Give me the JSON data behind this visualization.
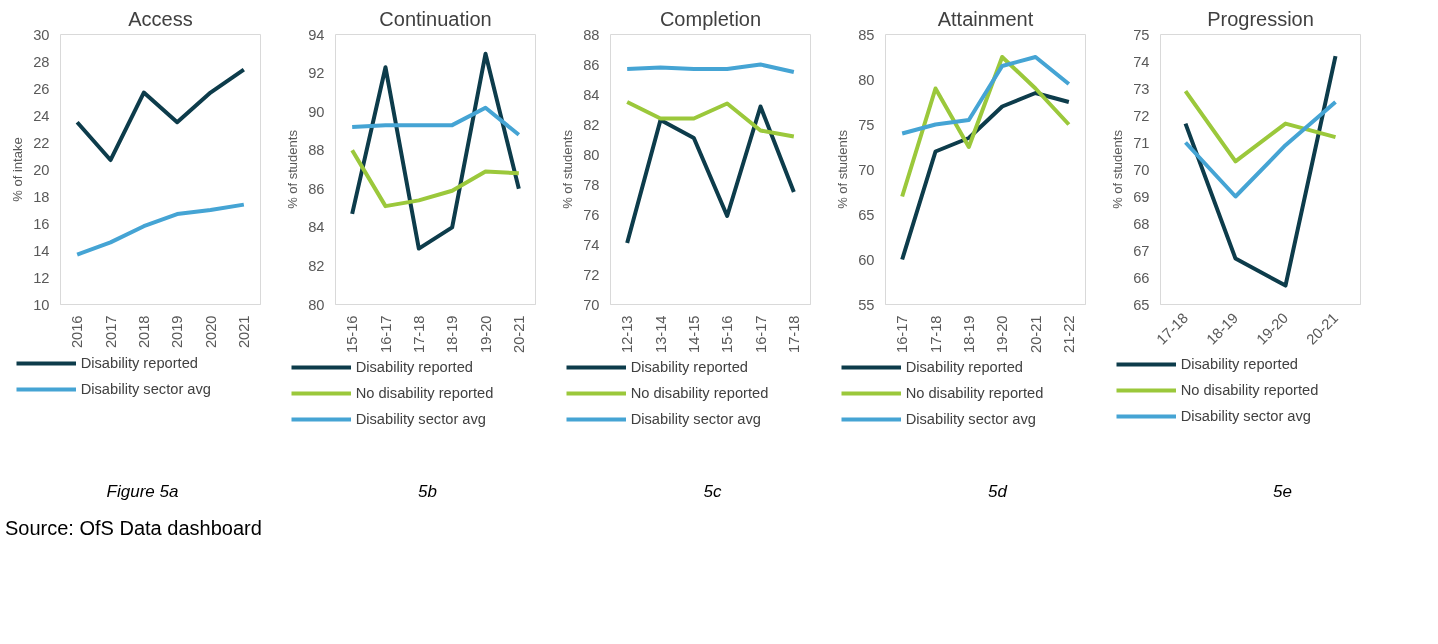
{
  "chart_data": [
    {
      "type": "line",
      "title": "Access",
      "ylabel": "% of intake",
      "categories": [
        "2016",
        "2017",
        "2018",
        "2019",
        "2020",
        "2021"
      ],
      "ylim": [
        10,
        30
      ],
      "yticks": [
        10,
        12,
        14,
        16,
        18,
        20,
        22,
        24,
        26,
        28,
        30
      ],
      "legend": "bottom",
      "annotations": [
        "Figure 5a",
        "Source: OfS Data dashboard"
      ],
      "series": [
        {
          "name": "Disability reported",
          "color": "#0d3c4b",
          "values": [
            23.5,
            20.7,
            25.7,
            23.5,
            25.7,
            27.4
          ]
        },
        {
          "name": "Disability sector avg",
          "color": "#45a4d4",
          "values": [
            13.7,
            14.6,
            15.8,
            16.7,
            17.0,
            17.4
          ]
        }
      ]
    },
    {
      "type": "line",
      "title": "Continuation",
      "ylabel": "% of students",
      "categories": [
        "15-16",
        "16-17",
        "17-18",
        "18-19",
        "19-20",
        "20-21"
      ],
      "ylim": [
        80,
        94
      ],
      "yticks": [
        80,
        82,
        84,
        86,
        88,
        90,
        92,
        94
      ],
      "legend": "bottom",
      "annotations": [
        "5b"
      ],
      "series": [
        {
          "name": "Disability reported",
          "color": "#0d3c4b",
          "values": [
            84.7,
            92.3,
            82.9,
            84.0,
            93.0,
            86.0
          ]
        },
        {
          "name": "No disability reported",
          "color": "#9bc83b",
          "values": [
            88.0,
            85.1,
            85.4,
            85.9,
            86.9,
            86.8
          ]
        },
        {
          "name": "Disability sector avg",
          "color": "#45a4d4",
          "values": [
            89.2,
            89.3,
            89.3,
            89.3,
            90.2,
            88.8
          ]
        }
      ]
    },
    {
      "type": "line",
      "title": "Completion",
      "ylabel": "% of students",
      "categories": [
        "12-13",
        "13-14",
        "14-15",
        "15-16",
        "16-17",
        "17-18"
      ],
      "ylim": [
        70,
        88
      ],
      "yticks": [
        70,
        72,
        74,
        76,
        78,
        80,
        82,
        84,
        86,
        88
      ],
      "legend": "bottom",
      "annotations": [
        "5c"
      ],
      "series": [
        {
          "name": "Disability reported",
          "color": "#0d3c4b",
          "values": [
            74.1,
            82.3,
            81.1,
            75.9,
            83.2,
            77.5
          ]
        },
        {
          "name": "No disability reported",
          "color": "#9bc83b",
          "values": [
            83.5,
            82.4,
            82.4,
            83.4,
            81.6,
            81.2
          ]
        },
        {
          "name": "Disability sector avg",
          "color": "#45a4d4",
          "values": [
            85.7,
            85.8,
            85.7,
            85.7,
            86.0,
            85.5
          ]
        }
      ]
    },
    {
      "type": "line",
      "title": "Attainment",
      "ylabel": "% of students",
      "categories": [
        "16-17",
        "17-18",
        "18-19",
        "19-20",
        "20-21",
        "21-22"
      ],
      "ylim": [
        55,
        85
      ],
      "yticks": [
        55,
        60,
        65,
        70,
        75,
        80,
        85
      ],
      "legend": "bottom",
      "annotations": [
        "5d"
      ],
      "series": [
        {
          "name": "Disability reported",
          "color": "#0d3c4b",
          "values": [
            60,
            72,
            73.5,
            77,
            78.5,
            77.5
          ]
        },
        {
          "name": "No disability reported",
          "color": "#9bc83b",
          "values": [
            67,
            79,
            72.5,
            82.5,
            79,
            75
          ]
        },
        {
          "name": "Disability sector avg",
          "color": "#45a4d4",
          "values": [
            74,
            75,
            75.5,
            81.5,
            82.5,
            79.5
          ]
        }
      ]
    },
    {
      "type": "line",
      "title": "Progression",
      "ylabel": "% of students",
      "categories": [
        "17-18",
        "18-19",
        "19-20",
        "20-21"
      ],
      "ylim": [
        65,
        75
      ],
      "yticks": [
        65,
        66,
        67,
        68,
        69,
        70,
        71,
        72,
        73,
        74,
        75
      ],
      "legend": "bottom",
      "annotations": [
        "5e"
      ],
      "series": [
        {
          "name": "Disability reported",
          "color": "#0d3c4b",
          "values": [
            71.7,
            66.7,
            65.7,
            74.2
          ]
        },
        {
          "name": "No disability reported",
          "color": "#9bc83b",
          "values": [
            72.9,
            70.3,
            71.7,
            71.2
          ]
        },
        {
          "name": "Disability sector avg",
          "color": "#45a4d4",
          "values": [
            71.0,
            69.0,
            70.9,
            72.5
          ]
        }
      ]
    }
  ]
}
